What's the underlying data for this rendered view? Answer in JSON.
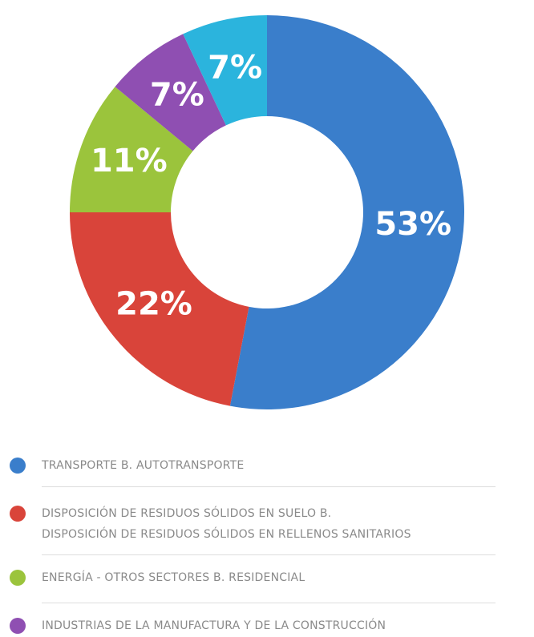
{
  "chart_data": {
    "type": "donut",
    "categories": [
      "TRANSPORTE B. AUTOTRANSPORTE",
      "DISPOSICIÓN DE RESIDUOS SÓLIDOS EN SUELO B.\nDISPOSICIÓN DE RESIDUOS SÓLIDOS EN RELLENOS SANITARIOS",
      "ENERGÍA - OTROS SECTORES B. RESIDENCIAL",
      "INDUSTRIAS DE LA MANUFACTURA Y DE LA CONSTRUCCIÓN",
      null
    ],
    "values": [
      53,
      22,
      11,
      7,
      7
    ],
    "value_labels": [
      "53%",
      "22%",
      "11%",
      "7%",
      "7%"
    ],
    "colors": [
      "#3a7ecb",
      "#d9443a",
      "#9bc43c",
      "#8f4fb2",
      "#2bb4dd"
    ]
  }
}
